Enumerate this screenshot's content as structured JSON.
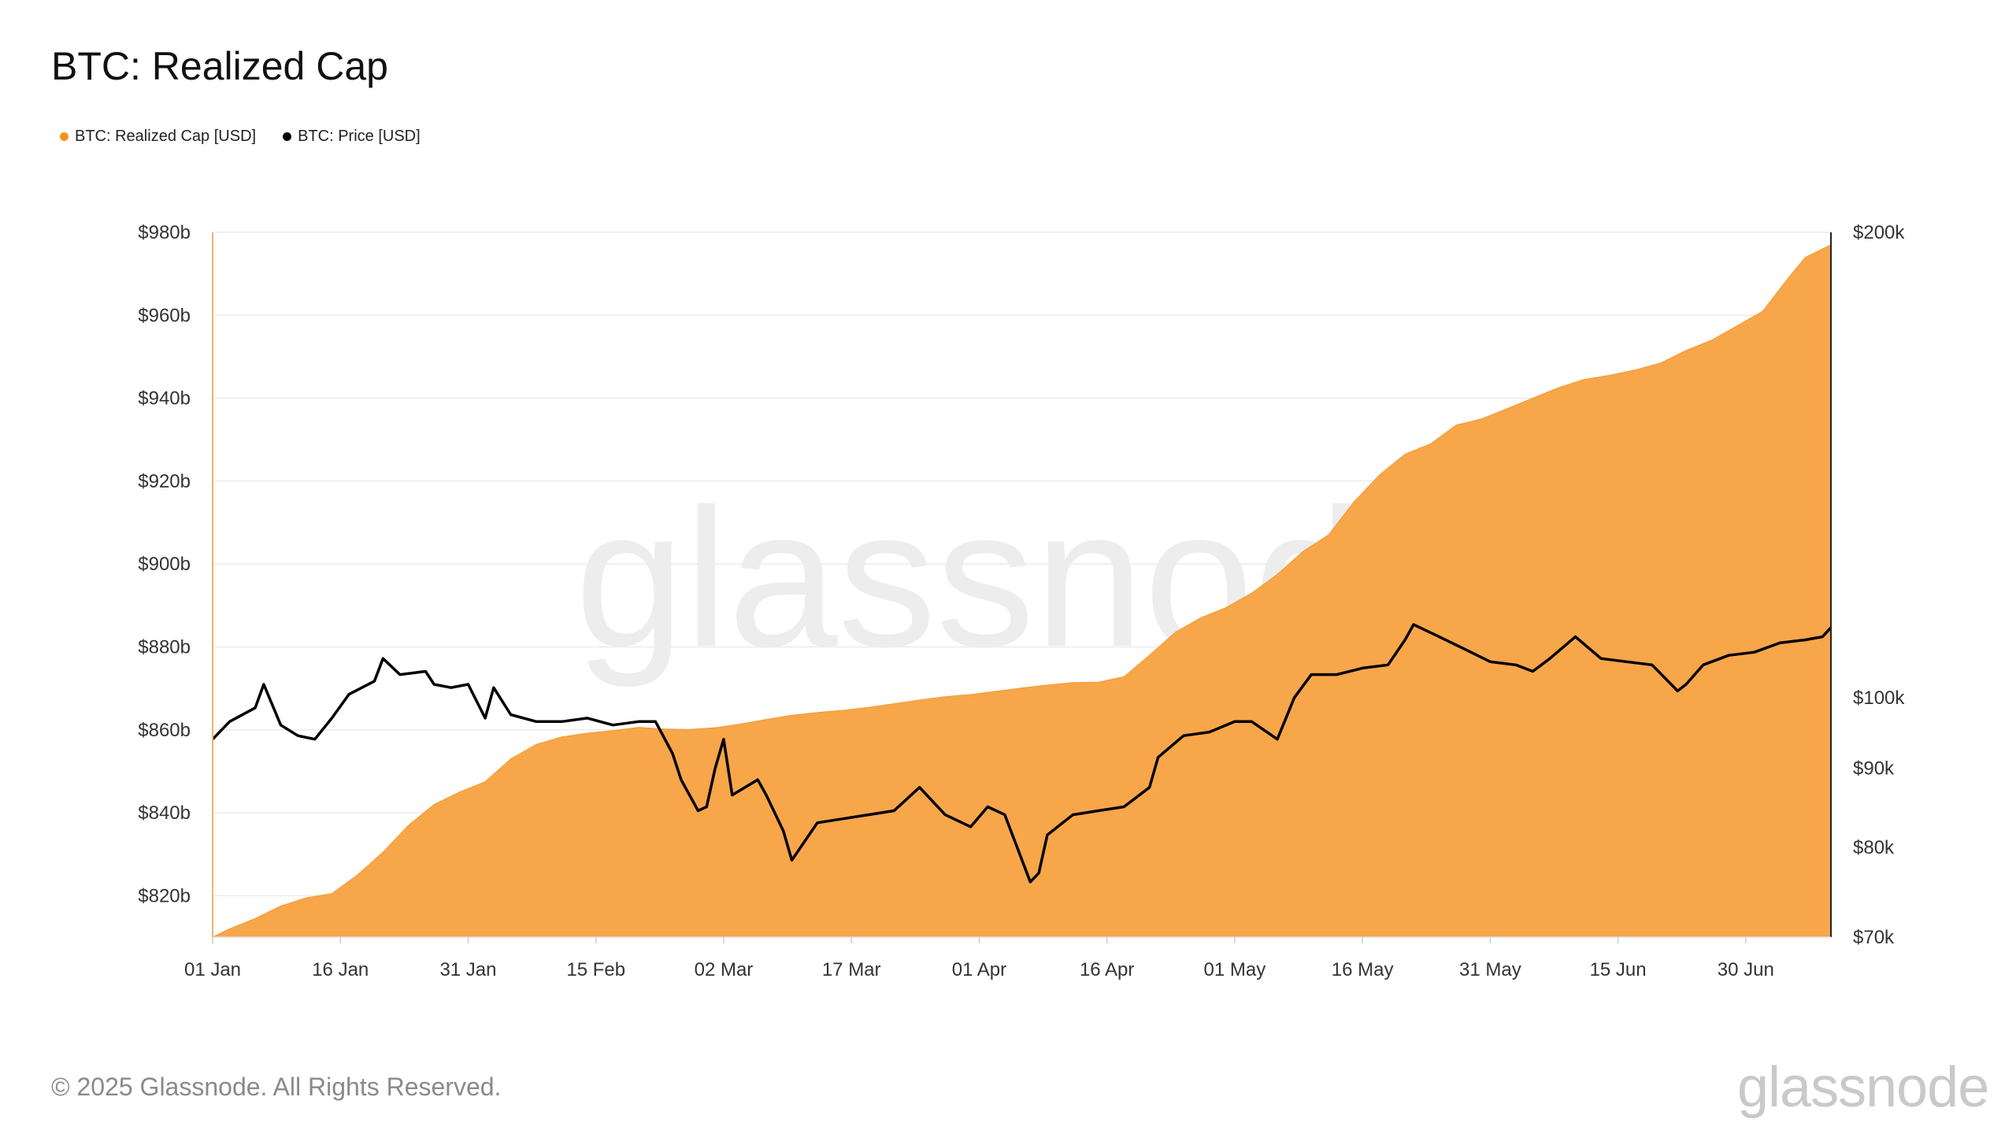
{
  "title": "BTC: Realized Cap",
  "legend": [
    {
      "label": "BTC: Realized Cap [USD]",
      "color": "#F7931A"
    },
    {
      "label": "BTC: Price [USD]",
      "color": "#000000"
    }
  ],
  "watermark": "glassnode",
  "footer": {
    "copyright": "© 2025 Glassnode. All Rights Reserved.",
    "logo": "glassnode"
  },
  "chart_data": {
    "type": "area",
    "x_axis": {
      "type": "date",
      "range": [
        "2025-01-01",
        "2025-07-10"
      ],
      "ticks": [
        "01 Jan",
        "16 Jan",
        "31 Jan",
        "15 Feb",
        "02 Mar",
        "17 Mar",
        "01 Apr",
        "16 Apr",
        "01 May",
        "16 May",
        "31 May",
        "15 Jun",
        "30 Jun"
      ],
      "tick_days": [
        0,
        15,
        30,
        45,
        60,
        75,
        90,
        105,
        120,
        135,
        150,
        165,
        180
      ]
    },
    "y_left": {
      "unit": "USD",
      "range": [
        810,
        980
      ],
      "ticks": [
        820,
        840,
        860,
        880,
        900,
        920,
        940,
        960,
        980
      ],
      "tick_labels": [
        "$820b",
        "$840b",
        "$860b",
        "$880b",
        "$900b",
        "$920b",
        "$940b",
        "$960b",
        "$980b"
      ]
    },
    "y_right": {
      "unit": "USD",
      "scale": "log",
      "range": [
        70000,
        200000
      ],
      "ticks": [
        70000,
        80000,
        90000,
        100000,
        200000
      ],
      "tick_labels": [
        "$70k",
        "$80k",
        "$90k",
        "$100k",
        "$200k"
      ]
    },
    "grid": true,
    "legend_position": "top-left",
    "series": [
      {
        "name": "BTC: Realized Cap [USD]",
        "type": "area",
        "color": "#F7931A",
        "axis": "left",
        "x": [
          "2025-01-01",
          "2025-01-03",
          "2025-01-06",
          "2025-01-09",
          "2025-01-12",
          "2025-01-15",
          "2025-01-18",
          "2025-01-21",
          "2025-01-24",
          "2025-01-27",
          "2025-01-30",
          "2025-02-02",
          "2025-02-05",
          "2025-02-08",
          "2025-02-11",
          "2025-02-14",
          "2025-02-17",
          "2025-02-20",
          "2025-02-23",
          "2025-02-26",
          "2025-03-01",
          "2025-03-04",
          "2025-03-07",
          "2025-03-10",
          "2025-03-13",
          "2025-03-16",
          "2025-03-19",
          "2025-03-22",
          "2025-03-25",
          "2025-03-28",
          "2025-03-31",
          "2025-04-03",
          "2025-04-06",
          "2025-04-09",
          "2025-04-12",
          "2025-04-15",
          "2025-04-18",
          "2025-04-21",
          "2025-04-24",
          "2025-04-27",
          "2025-04-30",
          "2025-05-03",
          "2025-05-06",
          "2025-05-09",
          "2025-05-12",
          "2025-05-15",
          "2025-05-18",
          "2025-05-21",
          "2025-05-24",
          "2025-05-27",
          "2025-05-30",
          "2025-06-02",
          "2025-06-05",
          "2025-06-08",
          "2025-06-11",
          "2025-06-14",
          "2025-06-17",
          "2025-06-20",
          "2025-06-23",
          "2025-06-26",
          "2025-06-29",
          "2025-07-02",
          "2025-07-05",
          "2025-07-07",
          "2025-07-10"
        ],
        "values": [
          810,
          812,
          814.5,
          817.5,
          819.5,
          820.5,
          825,
          830.5,
          837,
          842,
          845,
          847.5,
          853,
          856.5,
          858.3,
          859.2,
          859.8,
          860.6,
          860.2,
          860.1,
          860.5,
          861.4,
          862.5,
          863.5,
          864.2,
          864.7,
          865.4,
          866.3,
          867.2,
          868,
          868.5,
          869.3,
          870.1,
          870.8,
          871.4,
          871.5,
          872.8,
          878,
          883.5,
          887,
          889.5,
          893,
          897.5,
          903,
          907,
          915,
          921.5,
          926.5,
          929,
          933.5,
          935,
          937.5,
          940,
          942.5,
          944.5,
          945.5,
          946.8,
          948.5,
          951.5,
          954,
          957.5,
          961,
          969,
          974,
          977
        ]
      },
      {
        "name": "BTC: Price [USD]",
        "type": "line",
        "color": "#000000",
        "axis": "right",
        "x": [
          "2025-01-01",
          "2025-01-03",
          "2025-01-06",
          "2025-01-07",
          "2025-01-09",
          "2025-01-11",
          "2025-01-13",
          "2025-01-15",
          "2025-01-17",
          "2025-01-20",
          "2025-01-21",
          "2025-01-23",
          "2025-01-26",
          "2025-01-27",
          "2025-01-29",
          "2025-01-31",
          "2025-02-02",
          "2025-02-03",
          "2025-02-05",
          "2025-02-08",
          "2025-02-11",
          "2025-02-14",
          "2025-02-17",
          "2025-02-20",
          "2025-02-22",
          "2025-02-24",
          "2025-02-25",
          "2025-02-27",
          "2025-02-28",
          "2025-03-01",
          "2025-03-02",
          "2025-03-03",
          "2025-03-06",
          "2025-03-07",
          "2025-03-09",
          "2025-03-10",
          "2025-03-13",
          "2025-03-16",
          "2025-03-19",
          "2025-03-22",
          "2025-03-25",
          "2025-03-28",
          "2025-03-31",
          "2025-04-02",
          "2025-04-04",
          "2025-04-07",
          "2025-04-08",
          "2025-04-09",
          "2025-04-12",
          "2025-04-15",
          "2025-04-18",
          "2025-04-21",
          "2025-04-22",
          "2025-04-25",
          "2025-04-28",
          "2025-05-01",
          "2025-05-03",
          "2025-05-06",
          "2025-05-08",
          "2025-05-10",
          "2025-05-13",
          "2025-05-16",
          "2025-05-19",
          "2025-05-21",
          "2025-05-22",
          "2025-05-25",
          "2025-05-28",
          "2025-05-31",
          "2025-06-03",
          "2025-06-05",
          "2025-06-07",
          "2025-06-10",
          "2025-06-13",
          "2025-06-16",
          "2025-06-19",
          "2025-06-22",
          "2025-06-23",
          "2025-06-25",
          "2025-06-28",
          "2025-07-01",
          "2025-07-04",
          "2025-07-07",
          "2025-07-09",
          "2025-07-10"
        ],
        "values": [
          94000,
          96500,
          98500,
          102000,
          96000,
          94500,
          94000,
          97000,
          100500,
          102500,
          106000,
          103500,
          104000,
          102000,
          101500,
          102000,
          97000,
          101500,
          97500,
          96500,
          96500,
          97000,
          96000,
          96500,
          96500,
          92000,
          88500,
          84500,
          85000,
          90000,
          94000,
          86500,
          88500,
          86500,
          82000,
          78500,
          83000,
          83500,
          84000,
          84500,
          87500,
          84000,
          82500,
          85000,
          84000,
          76000,
          77000,
          81500,
          84000,
          84500,
          85000,
          87500,
          91500,
          94500,
          95000,
          96500,
          96500,
          94000,
          100000,
          103500,
          103500,
          104500,
          105000,
          109000,
          111500,
          109500,
          107500,
          105500,
          105000,
          104000,
          106000,
          109500,
          106000,
          105500,
          105000,
          101000,
          102000,
          105000,
          106500,
          107000,
          108500,
          109000,
          109500,
          111000
        ]
      }
    ]
  }
}
